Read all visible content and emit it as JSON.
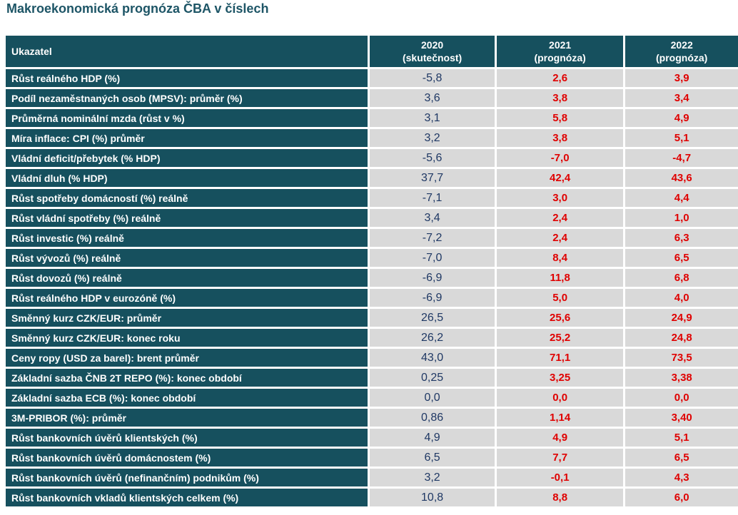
{
  "title": "Makroekonomická prognóza ČBA v číslech",
  "header": {
    "indicator": "Ukazatel",
    "columns": [
      {
        "year": "2020",
        "note": "(skutečnost)"
      },
      {
        "year": "2021",
        "note": "(prognóza)"
      },
      {
        "year": "2022",
        "note": "(prognóza)"
      }
    ]
  },
  "rows": [
    {
      "label": "Růst reálného HDP (%)",
      "y2020": "-5,8",
      "y2021": "2,6",
      "y2022": "3,9"
    },
    {
      "label": "Podíl nezaměstnaných osob (MPSV): průměr (%)",
      "y2020": "3,6",
      "y2021": "3,8",
      "y2022": "3,4"
    },
    {
      "label": "Průměrná nominální mzda (růst v %)",
      "y2020": "3,1",
      "y2021": "5,8",
      "y2022": "4,9"
    },
    {
      "label": "Míra inflace: CPI (%) průměr",
      "y2020": "3,2",
      "y2021": "3,8",
      "y2022": "5,1"
    },
    {
      "label": "Vládní deficit/přebytek (% HDP)",
      "y2020": "-5,6",
      "y2021": "-7,0",
      "y2022": "-4,7"
    },
    {
      "label": "Vládní dluh (% HDP)",
      "y2020": "37,7",
      "y2021": "42,4",
      "y2022": "43,6"
    },
    {
      "label": "Růst spotřeby domácností (%) reálně",
      "y2020": "-7,1",
      "y2021": "3,0",
      "y2022": "4,4"
    },
    {
      "label": "Růst vládní spotřeby (%) reálně",
      "y2020": "3,4",
      "y2021": "2,4",
      "y2022": "1,0"
    },
    {
      "label": "Růst investic (%) reálně",
      "y2020": "-7,2",
      "y2021": "2,4",
      "y2022": "6,3"
    },
    {
      "label": "Růst vývozů (%) reálně",
      "y2020": "-7,0",
      "y2021": "8,4",
      "y2022": "6,5"
    },
    {
      "label": "Růst dovozů (%) reálně",
      "y2020": "-6,9",
      "y2021": "11,8",
      "y2022": "6,8"
    },
    {
      "label": "Růst reálného HDP v eurozóně (%)",
      "y2020": "-6,9",
      "y2021": "5,0",
      "y2022": "4,0"
    },
    {
      "label": "Směnný kurz CZK/EUR: průměr",
      "y2020": "26,5",
      "y2021": "25,6",
      "y2022": "24,9"
    },
    {
      "label": "Směnný kurz CZK/EUR: konec roku",
      "y2020": "26,2",
      "y2021": "25,2",
      "y2022": "24,8"
    },
    {
      "label": "Ceny ropy (USD za barel): brent průměr",
      "y2020": "43,0",
      "y2021": "71,1",
      "y2022": "73,5"
    },
    {
      "label": "Základní sazba ČNB 2T REPO (%): konec období",
      "y2020": "0,25",
      "y2021": "3,25",
      "y2022": "3,38"
    },
    {
      "label": "Základní sazba ECB (%): konec období",
      "y2020": "0,0",
      "y2021": "0,0",
      "y2022": "0,0"
    },
    {
      "label": "3M-PRIBOR (%): průměr",
      "y2020": "0,86",
      "y2021": "1,14",
      "y2022": "3,40"
    },
    {
      "label": "Růst bankovních úvěrů klientských (%)",
      "y2020": "4,9",
      "y2021": "4,9",
      "y2022": "5,1"
    },
    {
      "label": "Růst bankovních úvěrů domácnostem (%)",
      "y2020": "6,5",
      "y2021": "7,7",
      "y2022": "6,5"
    },
    {
      "label": "Růst bankovních úvěrů (nefinančním) podnikům (%)",
      "y2020": "3,2",
      "y2021": "-0,1",
      "y2022": "4,3"
    },
    {
      "label": "Růst bankovních vkladů klientských celkem (%)",
      "y2020": "10,8",
      "y2021": "8,8",
      "y2022": "6,0"
    }
  ],
  "colors": {
    "header_bg": "#16505e",
    "cell_bg": "#d9d9d9",
    "actual_text": "#1f3864",
    "forecast_text": "#e00000",
    "title_text": "#1d5566"
  }
}
